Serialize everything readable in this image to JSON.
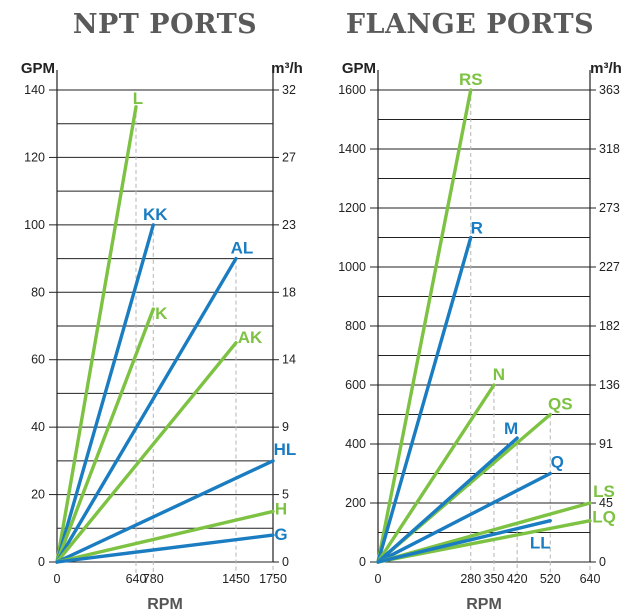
{
  "chart_data": [
    {
      "type": "line",
      "title": "NPT PORTS",
      "xlabel": "RPM",
      "ylabel_left": "GPM",
      "ylabel_right": "m³/h",
      "xlim": [
        0,
        1750
      ],
      "ylim": [
        0,
        140
      ],
      "x_ticks": [
        0,
        640,
        780,
        1450,
        1750
      ],
      "y_ticks": [
        0,
        20,
        40,
        60,
        80,
        100,
        120,
        140
      ],
      "right_ticks": [
        "0",
        "5",
        "9",
        "14",
        "18",
        "23",
        "27",
        "32"
      ],
      "series": [
        {
          "name": "L",
          "color": "#7dc242",
          "x": [
            0,
            640
          ],
          "y": [
            0,
            135
          ]
        },
        {
          "name": "KK",
          "color": "#1a7cc1",
          "x": [
            0,
            780
          ],
          "y": [
            0,
            100
          ]
        },
        {
          "name": "K",
          "color": "#7dc242",
          "x": [
            0,
            780
          ],
          "y": [
            0,
            75
          ]
        },
        {
          "name": "AL",
          "color": "#1a7cc1",
          "x": [
            0,
            1450
          ],
          "y": [
            0,
            90
          ]
        },
        {
          "name": "AK",
          "color": "#7dc242",
          "x": [
            0,
            1450
          ],
          "y": [
            0,
            65
          ]
        },
        {
          "name": "HL",
          "color": "#1a7cc1",
          "x": [
            0,
            1750
          ],
          "y": [
            0,
            30
          ]
        },
        {
          "name": "H",
          "color": "#7dc242",
          "x": [
            0,
            1750
          ],
          "y": [
            0,
            15
          ]
        },
        {
          "name": "G",
          "color": "#1a7cc1",
          "x": [
            0,
            1750
          ],
          "y": [
            0,
            8
          ]
        }
      ]
    },
    {
      "type": "line",
      "title": "FLANGE PORTS",
      "xlabel": "RPM",
      "ylabel_left": "GPM",
      "ylabel_right": "m³/h",
      "xlim": [
        0,
        640
      ],
      "ylim": [
        0,
        1600
      ],
      "x_ticks": [
        0,
        280,
        350,
        420,
        520,
        640
      ],
      "y_ticks": [
        0,
        200,
        400,
        600,
        800,
        1000,
        1200,
        1400,
        1600
      ],
      "right_ticks": [
        "0",
        "45",
        "91",
        "136",
        "182",
        "227",
        "273",
        "318",
        "363"
      ],
      "series": [
        {
          "name": "RS",
          "color": "#7dc242",
          "x": [
            0,
            280
          ],
          "y": [
            0,
            1600
          ]
        },
        {
          "name": "R",
          "color": "#1a7cc1",
          "x": [
            0,
            280
          ],
          "y": [
            0,
            1100
          ]
        },
        {
          "name": "N",
          "color": "#7dc242",
          "x": [
            0,
            350
          ],
          "y": [
            0,
            600
          ]
        },
        {
          "name": "QS",
          "color": "#7dc242",
          "x": [
            0,
            520
          ],
          "y": [
            0,
            500
          ]
        },
        {
          "name": "M",
          "color": "#1a7cc1",
          "x": [
            0,
            420
          ],
          "y": [
            0,
            420
          ]
        },
        {
          "name": "Q",
          "color": "#1a7cc1",
          "x": [
            0,
            520
          ],
          "y": [
            0,
            300
          ]
        },
        {
          "name": "LS",
          "color": "#7dc242",
          "x": [
            0,
            640
          ],
          "y": [
            0,
            200
          ]
        },
        {
          "name": "LQ",
          "color": "#7dc242",
          "x": [
            0,
            640
          ],
          "y": [
            0,
            140
          ]
        },
        {
          "name": "LL",
          "color": "#1a7cc1",
          "x": [
            0,
            520
          ],
          "y": [
            0,
            140
          ]
        }
      ]
    }
  ]
}
